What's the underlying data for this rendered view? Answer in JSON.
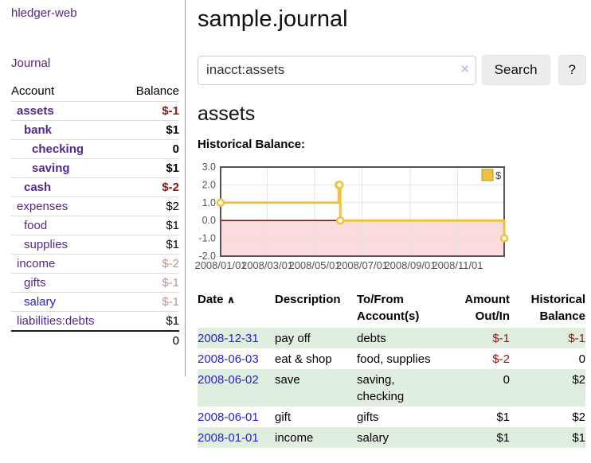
{
  "colors": {
    "purple_link": "#54278f",
    "blue_link": "#2222d8",
    "negative_strong": "#8f1414",
    "negative_soft": "#c9908f",
    "row_green": "#e0eee0",
    "chart_line": "#edc240",
    "chart_negative_fill": "#fbdcdc",
    "chart_zero_line": "#8b0000"
  },
  "sidebar": {
    "brand": "hledger-web",
    "nav": [
      {
        "label": "Journal"
      }
    ],
    "accounts_table": {
      "headers": {
        "account": "Account",
        "balance": "Balance"
      },
      "rows": [
        {
          "name": "assets",
          "depth": 1,
          "bold": true,
          "balance": "$-1",
          "balance_style": "neg-strong"
        },
        {
          "name": "bank",
          "depth": 2,
          "bold": true,
          "balance": "$1",
          "balance_style": "pos"
        },
        {
          "name": "checking",
          "depth": 3,
          "bold": true,
          "balance": "0",
          "balance_style": "pos"
        },
        {
          "name": "saving",
          "depth": 3,
          "bold": true,
          "balance": "$1",
          "balance_style": "pos"
        },
        {
          "name": "cash",
          "depth": 2,
          "bold": true,
          "balance": "$-2",
          "balance_style": "neg-strong"
        },
        {
          "name": "expenses",
          "depth": 1,
          "bold": false,
          "balance": "$2",
          "balance_style": "pos"
        },
        {
          "name": "food",
          "depth": 2,
          "bold": false,
          "balance": "$1",
          "balance_style": "pos"
        },
        {
          "name": "supplies",
          "depth": 2,
          "bold": false,
          "balance": "$1",
          "balance_style": "pos"
        },
        {
          "name": "income",
          "depth": 1,
          "bold": false,
          "balance": "$-2",
          "balance_style": "neg-soft"
        },
        {
          "name": "gifts",
          "depth": 2,
          "bold": false,
          "balance": "$-1",
          "balance_style": "neg-soft"
        },
        {
          "name": "salary",
          "depth": 2,
          "bold": false,
          "balance": "$-1",
          "balance_style": "neg-soft",
          "link_style": "blue"
        },
        {
          "name": "liabilities:debts",
          "depth": 1,
          "bold": false,
          "balance": "$1",
          "balance_style": "pos"
        }
      ],
      "total": "0"
    }
  },
  "header": {
    "title": "sample.journal"
  },
  "search": {
    "query": "inacct:assets",
    "clear_icon": "×",
    "search_label": "Search",
    "help_label": "?"
  },
  "account_page": {
    "heading": "assets",
    "chart_title": "Historical Balance:"
  },
  "chart_data": {
    "type": "line",
    "step": true,
    "title": "Historical Balance",
    "series": [
      {
        "name": "$",
        "color": "#edc240",
        "points": [
          {
            "date": "2008-01-01",
            "value": 1.0
          },
          {
            "date": "2008-06-01",
            "value": 2.0
          },
          {
            "date": "2008-06-02",
            "value": 2.0
          },
          {
            "date": "2008-06-03",
            "value": 0.0
          },
          {
            "date": "2008-12-31",
            "value": -1.0
          }
        ]
      }
    ],
    "xlim": [
      "2008-01-01",
      "2008-12-31"
    ],
    "ylim": [
      -2.0,
      3.0
    ],
    "yticks": [
      "3.0",
      "2.0",
      "1.0",
      "0.0",
      "-1.0",
      "-2.0"
    ],
    "xticks": [
      "2008/01/01",
      "2008/03/01",
      "2008/05/01",
      "2008/07/01",
      "2008/09/01",
      "2008/11/01"
    ],
    "legend": "$",
    "legend_position": "top-right",
    "grid": true,
    "negative_region_shaded": true
  },
  "register_table": {
    "headers": {
      "date": "Date",
      "sort_indicator": "∧",
      "description": "Description",
      "accounts": "To/From Account(s)",
      "amount": "Amount Out/In",
      "balance": "Historical Balance"
    },
    "rows": [
      {
        "date": "2008-12-31",
        "description": "pay off",
        "accounts": "debts",
        "amount": "$-1",
        "amount_neg": true,
        "balance": "$-1",
        "balance_neg": true,
        "shaded": true
      },
      {
        "date": "2008-06-03",
        "description": "eat & shop",
        "accounts": "food, supplies",
        "amount": "$-2",
        "amount_neg": true,
        "balance": "0",
        "balance_neg": false,
        "shaded": false
      },
      {
        "date": "2008-06-02",
        "description": "save",
        "accounts": "saving, checking",
        "amount": "0",
        "amount_neg": false,
        "balance": "$2",
        "balance_neg": false,
        "shaded": true
      },
      {
        "date": "2008-06-01",
        "description": "gift",
        "accounts": "gifts",
        "amount": "$1",
        "amount_neg": false,
        "balance": "$2",
        "balance_neg": false,
        "shaded": false
      },
      {
        "date": "2008-01-01",
        "description": "income",
        "accounts": "salary",
        "amount": "$1",
        "amount_neg": false,
        "balance": "$1",
        "balance_neg": false,
        "shaded": true
      }
    ]
  }
}
